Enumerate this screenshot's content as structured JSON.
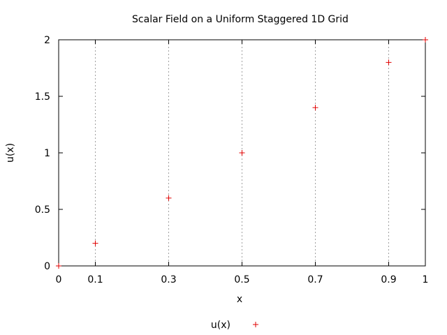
{
  "chart_data": {
    "type": "scatter",
    "title": "Scalar Field on a Uniform Staggered 1D Grid",
    "xlabel": "x",
    "ylabel": "u(x)",
    "xlim": [
      0,
      1
    ],
    "ylim": [
      0,
      2
    ],
    "x_ticks": [
      0,
      0.1,
      0.3,
      0.5,
      0.7,
      0.9,
      1
    ],
    "x_tick_labels": [
      "0",
      "0.1",
      "0.3",
      "0.5",
      "0.7",
      "0.9",
      "1"
    ],
    "y_ticks": [
      0,
      0.5,
      1,
      1.5,
      2
    ],
    "y_tick_labels": [
      "0",
      "0.5",
      "1",
      "1.5",
      "2"
    ],
    "grid": "vertical dashed lines at 0.1, 0.3, 0.5, 0.7, 0.9",
    "legend_position": "bottom-center",
    "series": [
      {
        "name": "u(x)",
        "marker": "plus",
        "color": "#e00000",
        "x": [
          0,
          0.1,
          0.3,
          0.5,
          0.7,
          0.9,
          1
        ],
        "y": [
          0,
          0.2,
          0.6,
          1.0,
          1.4,
          1.8,
          2.0
        ]
      }
    ]
  }
}
